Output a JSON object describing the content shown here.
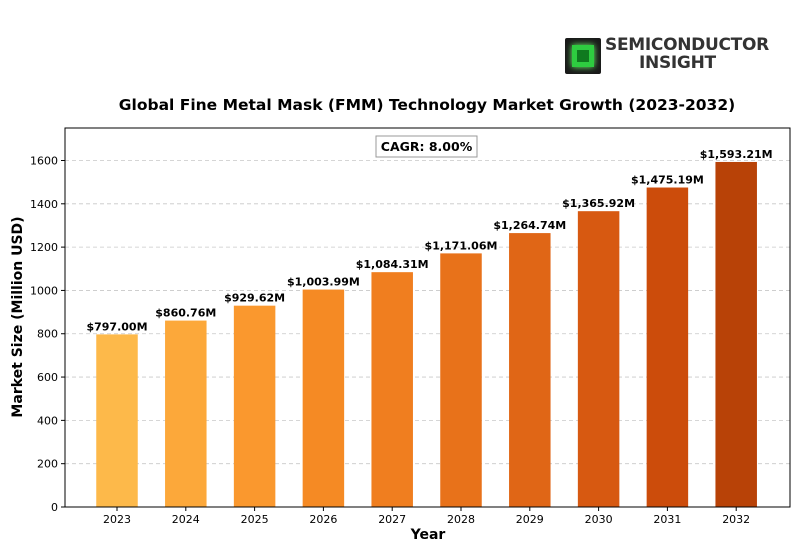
{
  "logo": {
    "line1": "SEMICONDUCTOR",
    "line2": "INSIGHT"
  },
  "chart_data": {
    "type": "bar",
    "title": "Global Fine Metal Mask (FMM) Technology Market Growth (2023-2032)",
    "xlabel": "Year",
    "ylabel": "Market Size (Million USD)",
    "categories": [
      "2023",
      "2024",
      "2025",
      "2026",
      "2027",
      "2028",
      "2029",
      "2030",
      "2031",
      "2032"
    ],
    "values": [
      797.0,
      860.76,
      929.62,
      1003.99,
      1084.31,
      1171.06,
      1264.74,
      1365.92,
      1475.19,
      1593.21
    ],
    "value_labels": [
      "$797.00M",
      "$860.76M",
      "$929.62M",
      "$1,003.99M",
      "$1,084.31M",
      "$1,171.06M",
      "$1,264.74M",
      "$1,365.92M",
      "$1,475.19M",
      "$1,593.21M"
    ],
    "ylim": [
      0,
      1750
    ],
    "yticks": [
      0,
      200,
      400,
      600,
      800,
      1000,
      1200,
      1400,
      1600
    ],
    "grid": "y-dashed",
    "annotation": "CAGR: 8.00%",
    "colors": [
      "#fdb94a",
      "#fca83a",
      "#fa982e",
      "#f58a24",
      "#f07e1f",
      "#e8721a",
      "#e06616",
      "#d75911",
      "#cc4c0b",
      "#b84207"
    ]
  }
}
